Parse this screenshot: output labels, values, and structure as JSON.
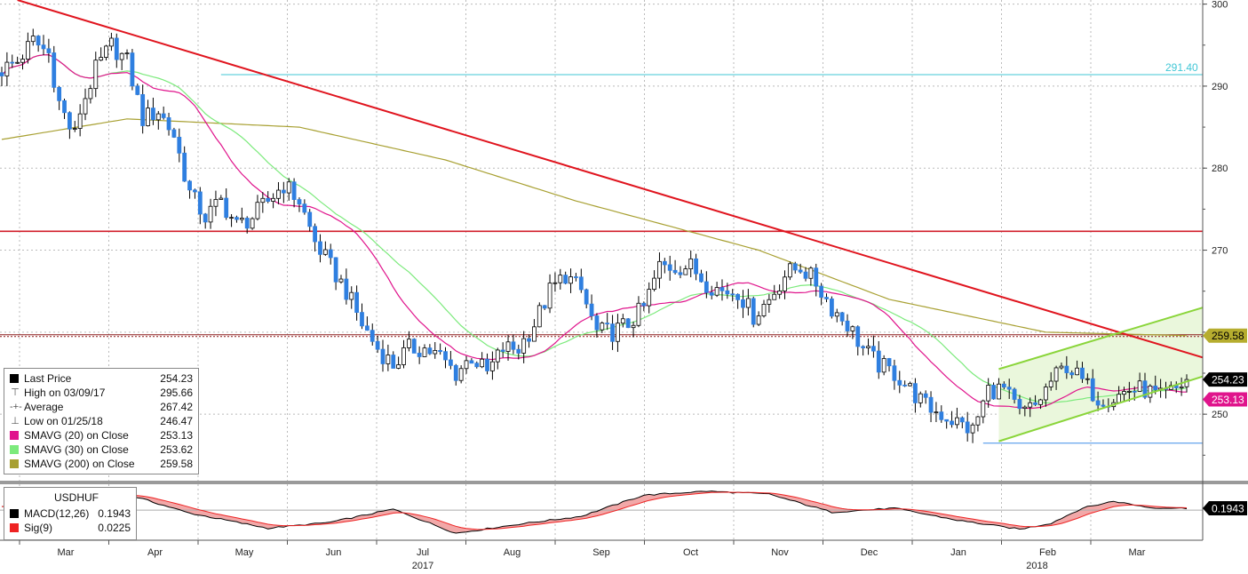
{
  "chart_data": {
    "type": "candlestick",
    "instrument": "USDHUF",
    "y_axis": {
      "min": 242,
      "max": 300.5,
      "ticks": [
        "300",
        "290",
        "280",
        "270",
        "250"
      ]
    },
    "x_axis": {
      "months": [
        "Mar",
        "Apr",
        "May",
        "Jun",
        "Jul",
        "Aug",
        "Sep",
        "Oct",
        "Nov",
        "Dec",
        "Jan",
        "Feb",
        "Mar"
      ],
      "years": [
        "2017",
        "2018"
      ]
    },
    "horizontal_levels": [
      {
        "value": 291.4,
        "label": "291.40",
        "color": "#41c7d6"
      },
      {
        "value": 272.3,
        "label": "",
        "color": "#d21e2a"
      },
      {
        "value": 259.58,
        "label": "",
        "color": "#8b1a1a"
      },
      {
        "value": 246.47,
        "label": "",
        "color": "#3e8ee8"
      }
    ],
    "right_tags": [
      {
        "label": "259.58",
        "value": 259.58,
        "bg": "#b6ad2f",
        "fg": "#000"
      },
      {
        "label": "254.23",
        "value": 254.23,
        "bg": "#000000",
        "fg": "#ffffff"
      },
      {
        "label": "253.13",
        "value": 253.1,
        "bg": "#e0148c",
        "fg": "#ffffff"
      }
    ],
    "price_anchors": [
      [
        0,
        292
      ],
      [
        3,
        293
      ],
      [
        6,
        295.5
      ],
      [
        9,
        294
      ],
      [
        11,
        288
      ],
      [
        13,
        285
      ],
      [
        14,
        284
      ],
      [
        15,
        287
      ],
      [
        18,
        292
      ],
      [
        21,
        295
      ],
      [
        24,
        293
      ],
      [
        27,
        286
      ],
      [
        30,
        287
      ],
      [
        33,
        284
      ],
      [
        36,
        277
      ],
      [
        39,
        274
      ],
      [
        42,
        276
      ],
      [
        45,
        273
      ],
      [
        48,
        274
      ],
      [
        51,
        276
      ],
      [
        54,
        278
      ],
      [
        57,
        276
      ],
      [
        60,
        271
      ],
      [
        63,
        268
      ],
      [
        66,
        265
      ],
      [
        69,
        261
      ],
      [
        72,
        258
      ],
      [
        75,
        256
      ],
      [
        78,
        258
      ],
      [
        81,
        258
      ],
      [
        84,
        257
      ],
      [
        87,
        255
      ],
      [
        90,
        257
      ],
      [
        93,
        255
      ],
      [
        96,
        258
      ],
      [
        99,
        258
      ],
      [
        102,
        261
      ],
      [
        105,
        265
      ],
      [
        108,
        267
      ],
      [
        111,
        265
      ],
      [
        114,
        260
      ],
      [
        117,
        260
      ],
      [
        120,
        261
      ],
      [
        123,
        263
      ],
      [
        126,
        268
      ],
      [
        129,
        268
      ],
      [
        132,
        268
      ],
      [
        135,
        266
      ],
      [
        138,
        265
      ],
      [
        141,
        265
      ],
      [
        144,
        262
      ],
      [
        147,
        264
      ],
      [
        150,
        267
      ],
      [
        153,
        268
      ],
      [
        156,
        266
      ],
      [
        159,
        263
      ],
      [
        162,
        261
      ],
      [
        165,
        258
      ],
      [
        168,
        256
      ],
      [
        171,
        255
      ],
      [
        174,
        253
      ],
      [
        177,
        251
      ],
      [
        180,
        250
      ],
      [
        183,
        249
      ],
      [
        186,
        248
      ],
      [
        189,
        253
      ],
      [
        192,
        253
      ],
      [
        195,
        250
      ],
      [
        198,
        251
      ],
      [
        201,
        254
      ],
      [
        204,
        256
      ],
      [
        207,
        254
      ],
      [
        210,
        252
      ],
      [
        213,
        252
      ],
      [
        216,
        253
      ],
      [
        219,
        253
      ],
      [
        222,
        252
      ],
      [
        225,
        253
      ],
      [
        227,
        254.23
      ]
    ],
    "price_total_bars": 228,
    "candle_up_color": "#ffffff",
    "candle_down_color": "#2f7fe0",
    "sma_series": [
      {
        "name": "SMAVG (20) on Close",
        "last": 253.13,
        "color": "#e0148c"
      },
      {
        "name": "SMAVG (30) on Close",
        "last": 253.62,
        "color": "#7cea7c"
      },
      {
        "name": "SMAVG (200) on Close",
        "last": 259.58,
        "color": "#a8a032"
      }
    ],
    "sma200_anchors": [
      [
        0,
        283.5
      ],
      [
        24,
        286
      ],
      [
        57,
        285
      ],
      [
        85,
        281
      ],
      [
        110,
        276
      ],
      [
        145,
        270
      ],
      [
        170,
        264
      ],
      [
        200,
        260
      ],
      [
        227,
        259.58
      ]
    ],
    "trendlines": [
      {
        "name": "downtrend",
        "color": "#e0141e",
        "points": [
          [
            3,
            300.5
          ],
          [
            227,
            257.5
          ]
        ]
      },
      {
        "name": "channel-upper",
        "color": "#8ad53a",
        "points": [
          [
            191,
            255.5
          ],
          [
            227,
            262.2
          ]
        ]
      },
      {
        "name": "channel-lower",
        "color": "#8ad53a",
        "points": [
          [
            191,
            246.7
          ],
          [
            227,
            254.0
          ]
        ]
      }
    ],
    "macd": {
      "anchors": [
        [
          0,
          0.3
        ],
        [
          12,
          1.5
        ],
        [
          24,
          1.6
        ],
        [
          36,
          -0.3
        ],
        [
          51,
          -1.8
        ],
        [
          63,
          -1.2
        ],
        [
          75,
          0.1
        ],
        [
          87,
          -2.3
        ],
        [
          99,
          -1.4
        ],
        [
          111,
          -0.6
        ],
        [
          123,
          1.5
        ],
        [
          135,
          1.9
        ],
        [
          147,
          1.6
        ],
        [
          159,
          -0.2
        ],
        [
          171,
          0.2
        ],
        [
          183,
          -1.0
        ],
        [
          195,
          -1.9
        ],
        [
          201,
          -1.3
        ],
        [
          207,
          0.2
        ],
        [
          213,
          0.9
        ],
        [
          220,
          0.25
        ],
        [
          227,
          0.19
        ]
      ],
      "ylim": [
        -3,
        2.5
      ],
      "last": "0.1943",
      "sig_last": "0.0225",
      "macd_color": "#000000",
      "sig_color": "#ee2222",
      "fill_color": "#f2a8a8"
    }
  },
  "legend": {
    "rows": [
      {
        "label": "Last Price",
        "value": "254.23",
        "swatch": "#000000",
        "icon": ""
      },
      {
        "label": "High on 03/09/17",
        "value": "295.66",
        "swatch": "",
        "icon": "⊤"
      },
      {
        "label": "Average",
        "value": "267.42",
        "swatch": "",
        "icon": "-+-"
      },
      {
        "label": "Low on 01/25/18",
        "value": "246.47",
        "swatch": "",
        "icon": "⊥"
      },
      {
        "label": "SMAVG (20) on Close",
        "value": "253.13",
        "swatch": "#e0148c",
        "icon": ""
      },
      {
        "label": "SMAVG (30) on Close",
        "value": "253.62",
        "swatch": "#7cea7c",
        "icon": ""
      },
      {
        "label": "SMAVG (200) on Close",
        "value": "259.58",
        "swatch": "#a8a032",
        "icon": ""
      }
    ]
  },
  "macd_legend": {
    "title": "USDHUF",
    "rows": [
      {
        "label": "MACD(12,26)",
        "value": "0.1943",
        "swatch": "#000000"
      },
      {
        "label": "Sig(9)",
        "value": "0.0225",
        "swatch": "#ee2222"
      }
    ]
  },
  "macd_tag": {
    "label": "0.1943",
    "bg": "#000000",
    "fg": "#ffffff"
  },
  "level_label": {
    "label": "291.40",
    "color": "#41c7d6"
  }
}
